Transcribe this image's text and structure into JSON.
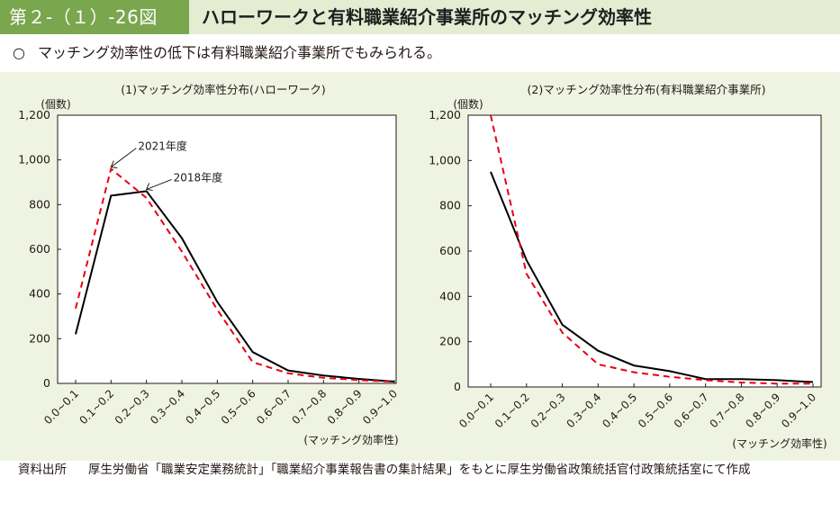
{
  "header": {
    "figure_no": "第２-（１）-26図",
    "title": "ハローワークと有料職業紹介事業所のマッチング効率性"
  },
  "summary": {
    "bullet": "○",
    "text": "マッチング効率性の低下は有料職業紹介事業所でもみられる。"
  },
  "source": {
    "label": "資料出所",
    "text": "厚生労働省「職業安定業務統計」「職業紹介事業報告書の集計結果」をもとに厚生労働省政策統括官付政策統括室にて作成"
  },
  "colors": {
    "header_band": "#7aa64d",
    "title_band": "#e4ecd2",
    "panel_bg": "#eff4e2",
    "series_2018": "#000000",
    "series_2021": "#e60012"
  },
  "chart_data": [
    {
      "type": "line",
      "title": "(1)マッチング効率性分布(ハローワーク)",
      "ylabel": "(個数)",
      "xlabel": "(マッチング効率性)",
      "categories": [
        "0.0~0.1",
        "0.1~0.2",
        "0.2~0.3",
        "0.3~0.4",
        "0.4~0.5",
        "0.5~0.6",
        "0.6~0.7",
        "0.7~0.8",
        "0.8~0.9",
        "0.9~1.0"
      ],
      "ylim": [
        0,
        1200
      ],
      "yticks": [
        "0",
        "200",
        "400",
        "600",
        "800",
        "1,000",
        "1,200"
      ],
      "grid": false,
      "series": [
        {
          "name": "2018年度",
          "style": "solid",
          "values": [
            220,
            840,
            860,
            650,
            365,
            140,
            58,
            35,
            20,
            8
          ]
        },
        {
          "name": "2021年度",
          "style": "dashed",
          "values": [
            335,
            960,
            830,
            590,
            330,
            95,
            45,
            25,
            15,
            7
          ]
        }
      ],
      "annotations": [
        {
          "text": "2021年度",
          "series": 1,
          "index": 1
        },
        {
          "text": "2018年度",
          "series": 0,
          "index": 2
        }
      ]
    },
    {
      "type": "line",
      "title": "(2)マッチング効率性分布(有料職業紹介事業所)",
      "ylabel": "(個数)",
      "xlabel": "(マッチング効率性)",
      "categories": [
        "0.0~0.1",
        "0.1~0.2",
        "0.2~0.3",
        "0.3~0.4",
        "0.4~0.5",
        "0.5~0.6",
        "0.6~0.7",
        "0.7~0.8",
        "0.8~0.9",
        "0.9~1.0"
      ],
      "ylim": [
        0,
        1200
      ],
      "yticks": [
        "0",
        "200",
        "400",
        "600",
        "800",
        "1,000",
        "1,200"
      ],
      "grid": false,
      "series": [
        {
          "name": "2018年度",
          "style": "solid",
          "values": [
            950,
            560,
            275,
            160,
            95,
            70,
            35,
            35,
            30,
            22
          ]
        },
        {
          "name": "2021年度",
          "style": "dashed",
          "values": [
            1210,
            500,
            240,
            100,
            65,
            45,
            30,
            20,
            15,
            15
          ]
        }
      ]
    }
  ]
}
